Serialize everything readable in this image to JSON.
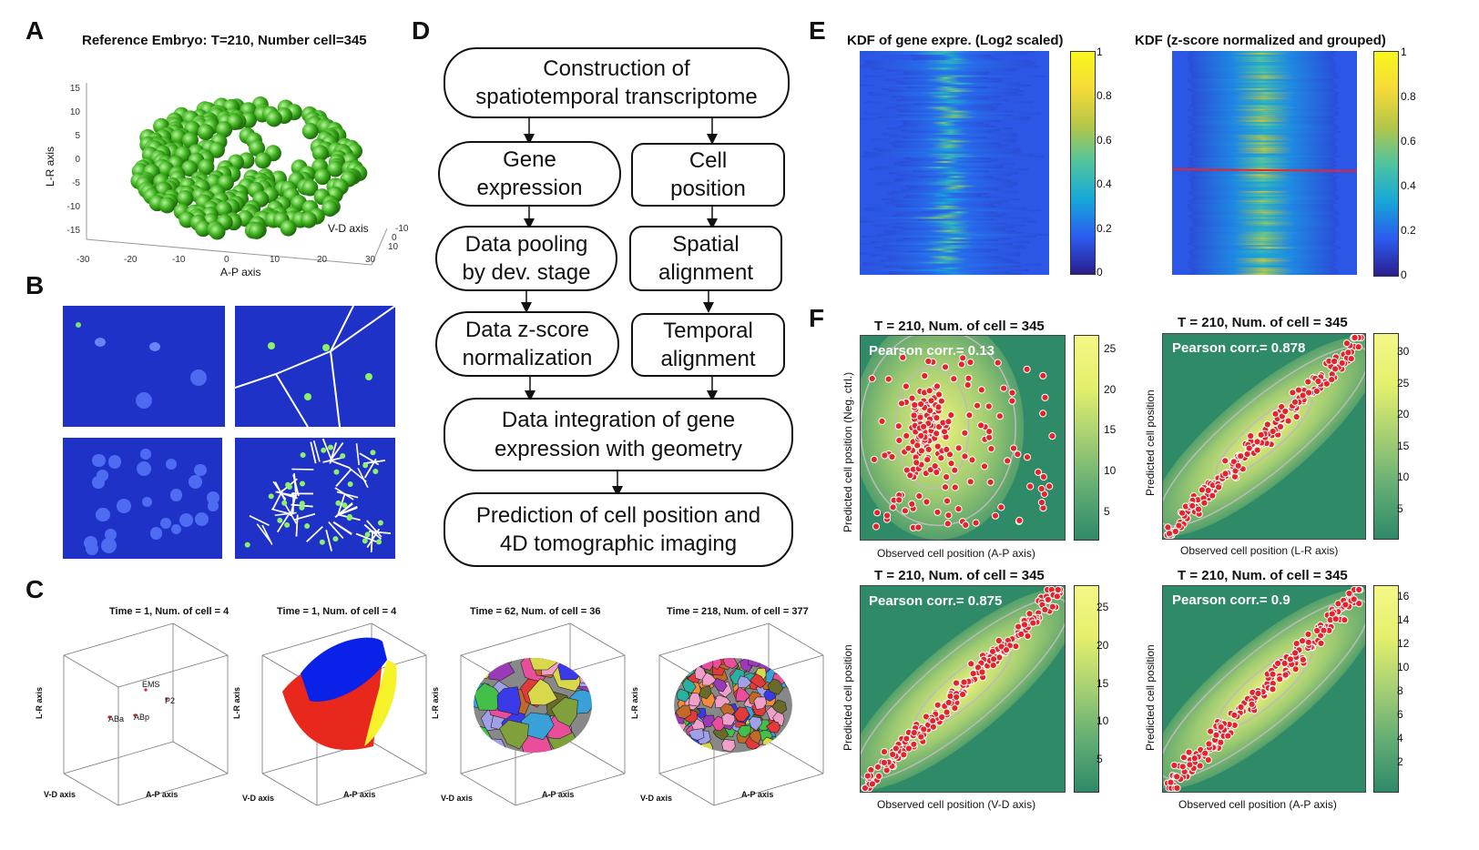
{
  "labels": {
    "A": "A",
    "B": "B",
    "C": "C",
    "D": "D",
    "E": "E",
    "F": "F"
  },
  "panelA": {
    "title": "Reference Embryo: T=210, Number cell=345",
    "ylabel": "L-R axis",
    "xlabel": "A-P axis",
    "zlabel": "V-D axis",
    "yticks": [
      "15",
      "10",
      "5",
      "0",
      "-5",
      "-10",
      "-15"
    ],
    "xticks": [
      "-30",
      "-20",
      "-10",
      "0",
      "10",
      "20",
      "30"
    ],
    "zticks": [
      "-10",
      "0",
      "10"
    ],
    "color": "#3fb11f"
  },
  "panelC": {
    "titles": [
      "Time = 1, Num. of cell = 4",
      "Time = 1, Num. of cell = 4",
      "Time = 62, Num. of cell = 36",
      "Time = 218, Num. of cell = 377"
    ],
    "ylabel": "L-R axis",
    "xlabel": "A-P axis",
    "zlabel": "V-D axis",
    "cells": [
      "EMS",
      "P2",
      "ABa",
      "ABp"
    ]
  },
  "flow": {
    "n1": "Construction of\nspatiotemporal transcriptome",
    "n2": "Gene\nexpression",
    "n3": "Cell\nposition",
    "n4": "Data pooling\nby dev. stage",
    "n5": "Spatial\nalignment",
    "n6": "Data z-score\nnormalization",
    "n7": "Temporal\nalignment",
    "n8": "Data integration of gene\nexpression with geometry",
    "n9": "Prediction of cell position and\n4D tomographic imaging"
  },
  "panelE": {
    "left_title": "KDF of gene expre. (Log2 scaled)",
    "right_title": "KDF (z-score normalized and grouped)",
    "cbar_ticks": [
      "1",
      "0.8",
      "0.6",
      "0.4",
      "0.2",
      "0"
    ]
  },
  "panelF": {
    "plots": [
      {
        "title": "T = 210, Num. of cell = 345",
        "corr": "Pearson corr.= 0.13",
        "xlabel": "Observed cell position (A-P axis)",
        "ylabel": "Predicted cell position (Neg. ctrl.)",
        "cticks": [
          "25",
          "20",
          "15",
          "10",
          "5"
        ]
      },
      {
        "title": "T = 210, Num. of cell = 345",
        "corr": "Pearson corr.= 0.878",
        "xlabel": "Observed cell position (L-R axis)",
        "ylabel": "Predicted cell position",
        "cticks": [
          "30",
          "25",
          "20",
          "15",
          "10",
          "5"
        ]
      },
      {
        "title": "T = 210, Num. of cell = 345",
        "corr": "Pearson corr.= 0.875",
        "xlabel": "Observed cell position (V-D axis)",
        "ylabel": "Predicted cell position",
        "cticks": [
          "25",
          "20",
          "15",
          "10",
          "5"
        ]
      },
      {
        "title": "T = 210, Num. of cell = 345",
        "corr": "Pearson corr.= 0.9",
        "xlabel": "Observed cell position (A-P axis)",
        "ylabel": "Predicted cell position",
        "cticks": [
          "16",
          "14",
          "12",
          "10",
          "8",
          "6",
          "4",
          "2"
        ]
      }
    ]
  }
}
